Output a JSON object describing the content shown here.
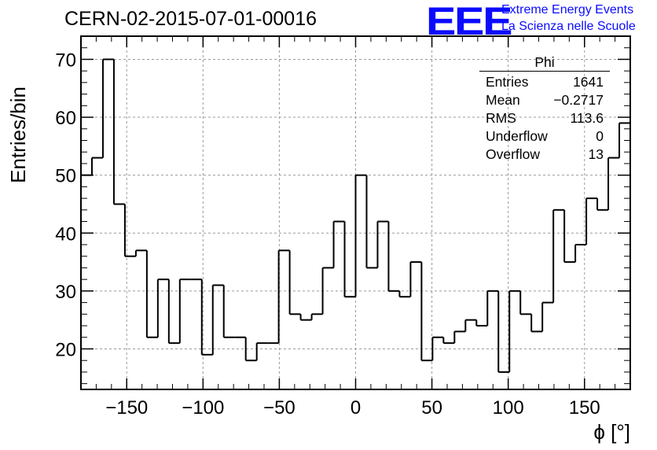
{
  "title": "CERN-02-2015-07-01-00016",
  "logo": {
    "mark": "EEE",
    "line1": "Extreme Energy Events",
    "line2": "La Scienza nelle Scuole"
  },
  "stats": {
    "title": "Phi",
    "rows": [
      {
        "label": "Entries",
        "value": "1641"
      },
      {
        "label": "Mean",
        "value": "−0.2717"
      },
      {
        "label": "RMS",
        "value": "113.6"
      },
      {
        "label": "Underflow",
        "value": "0"
      },
      {
        "label": "Overflow",
        "value": "13"
      }
    ]
  },
  "chart_data": {
    "type": "bar",
    "style": "step-histogram",
    "title": "CERN-02-2015-07-01-00016",
    "xlabel": "ϕ [°]",
    "ylabel": "Entries/bin",
    "xlim": [
      -180,
      180
    ],
    "ylim": [
      13,
      74
    ],
    "bin_width": 7.2,
    "bin_low_edges": [
      -180,
      -172.8,
      -165.6,
      -158.4,
      -151.2,
      -144,
      -136.8,
      -129.6,
      -122.4,
      -115.2,
      -108,
      -100.8,
      -93.6,
      -86.4,
      -79.2,
      -72,
      -64.8,
      -57.6,
      -50.4,
      -43.2,
      -36,
      -28.8,
      -21.6,
      -14.4,
      -7.2,
      0,
      7.2,
      14.4,
      21.6,
      28.8,
      36,
      43.2,
      50.4,
      57.6,
      64.8,
      72,
      79.2,
      86.4,
      93.6,
      100.8,
      108,
      115.2,
      122.4,
      129.6,
      136.8,
      144,
      151.2,
      158.4,
      165.6,
      172.8
    ],
    "values": [
      50,
      53,
      70,
      45,
      36,
      37,
      22,
      32,
      21,
      32,
      32,
      19,
      31,
      22,
      22,
      18,
      21,
      21,
      37,
      26,
      25,
      26,
      34,
      42,
      29,
      50,
      34,
      42,
      30,
      29,
      35,
      18,
      22,
      21,
      23,
      25,
      24,
      30,
      16,
      30,
      26,
      23,
      28,
      44,
      35,
      38,
      46,
      44,
      53,
      59
    ],
    "x_ticks": [
      -150,
      -100,
      -50,
      0,
      50,
      100,
      150
    ],
    "y_ticks": [
      20,
      30,
      40,
      50,
      60,
      70
    ],
    "grid": true,
    "legend": "top-right stats box"
  }
}
